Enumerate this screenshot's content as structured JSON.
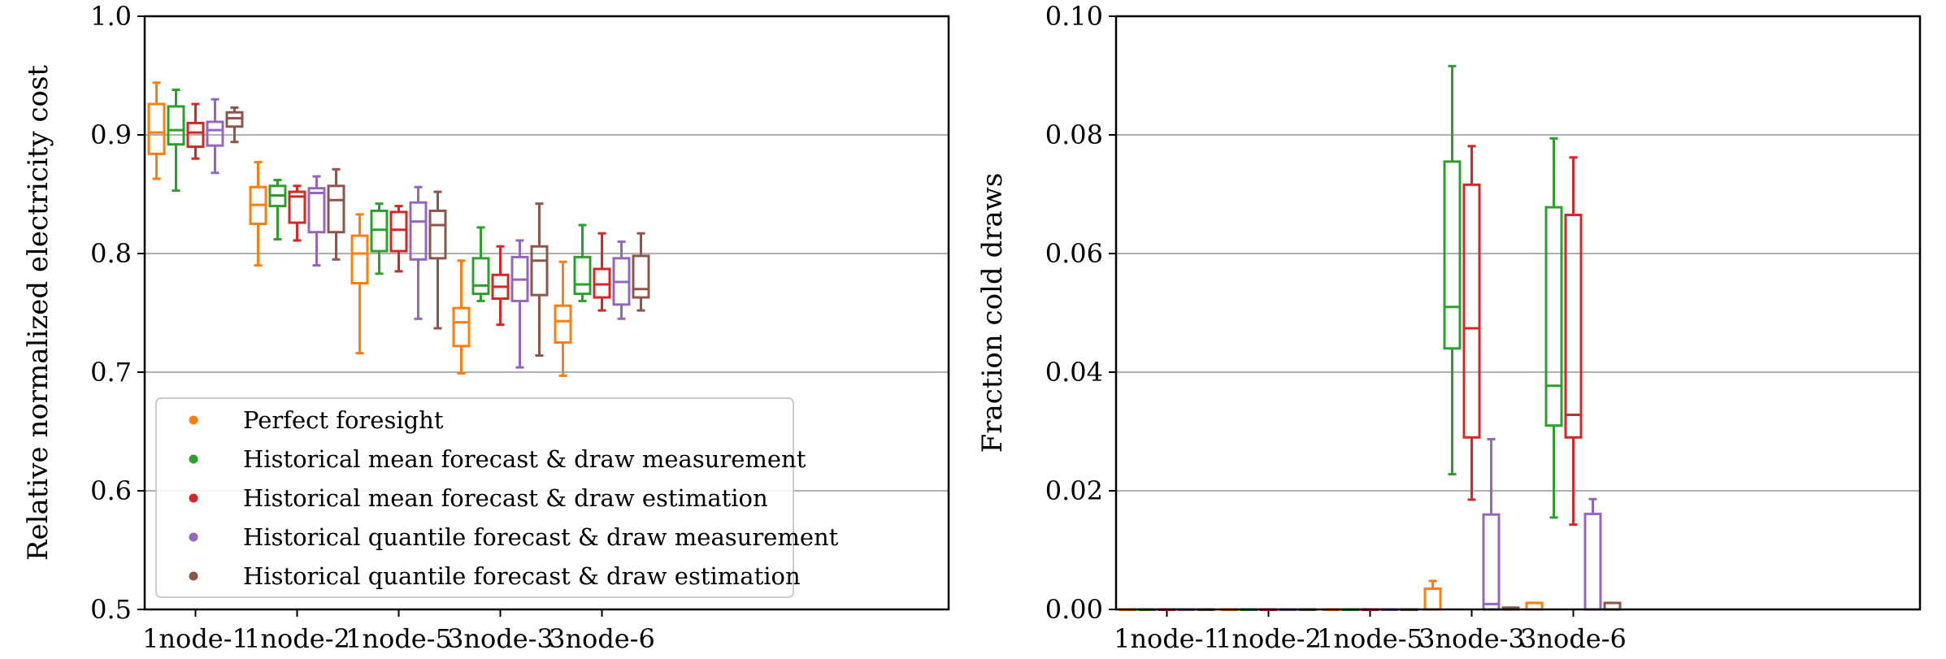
{
  "chart_data": [
    {
      "type": "box",
      "title": "",
      "xlabel": "",
      "ylabel": "Relative normalized electricity cost",
      "ylim": [
        0.5,
        1.0
      ],
      "yticks": [
        "0.5",
        "0.6",
        "0.7",
        "0.8",
        "0.9",
        "1.0"
      ],
      "ytick_values": [
        0.5,
        0.6,
        0.7,
        0.8,
        0.9,
        1.0
      ],
      "grid": "horizontal",
      "categories": [
        "1node-1",
        "1node-2",
        "1node-5",
        "3node-3",
        "3node-6"
      ],
      "legend": {
        "location": "lower-left",
        "entries": [
          "Perfect foresight",
          "Historical mean forecast & draw measurement",
          "Historical mean forecast & draw estimation",
          "Historical quantile forecast & draw measurement",
          "Historical quantile forecast & draw estimation"
        ]
      },
      "series": [
        {
          "name": "Perfect foresight",
          "color": "#ff7f0e",
          "boxes": [
            {
              "whislo": 0.863,
              "q1": 0.884,
              "med": 0.902,
              "q3": 0.926,
              "whishi": 0.944
            },
            {
              "whislo": 0.79,
              "q1": 0.825,
              "med": 0.841,
              "q3": 0.856,
              "whishi": 0.877
            },
            {
              "whislo": 0.716,
              "q1": 0.775,
              "med": 0.8,
              "q3": 0.815,
              "whishi": 0.833
            },
            {
              "whislo": 0.699,
              "q1": 0.722,
              "med": 0.742,
              "q3": 0.754,
              "whishi": 0.794
            },
            {
              "whislo": 0.697,
              "q1": 0.725,
              "med": 0.743,
              "q3": 0.756,
              "whishi": 0.793
            }
          ]
        },
        {
          "name": "Historical mean forecast & draw measurement",
          "color": "#2ca02c",
          "boxes": [
            {
              "whislo": 0.853,
              "q1": 0.892,
              "med": 0.904,
              "q3": 0.924,
              "whishi": 0.938
            },
            {
              "whislo": 0.812,
              "q1": 0.84,
              "med": 0.849,
              "q3": 0.857,
              "whishi": 0.862
            },
            {
              "whislo": 0.783,
              "q1": 0.802,
              "med": 0.82,
              "q3": 0.836,
              "whishi": 0.842
            },
            {
              "whislo": 0.76,
              "q1": 0.766,
              "med": 0.773,
              "q3": 0.796,
              "whishi": 0.822
            },
            {
              "whislo": 0.76,
              "q1": 0.766,
              "med": 0.774,
              "q3": 0.797,
              "whishi": 0.824
            }
          ]
        },
        {
          "name": "Historical mean forecast & draw estimation",
          "color": "#d62728",
          "boxes": [
            {
              "whislo": 0.88,
              "q1": 0.89,
              "med": 0.902,
              "q3": 0.91,
              "whishi": 0.926
            },
            {
              "whislo": 0.811,
              "q1": 0.826,
              "med": 0.848,
              "q3": 0.852,
              "whishi": 0.857
            },
            {
              "whislo": 0.785,
              "q1": 0.802,
              "med": 0.82,
              "q3": 0.835,
              "whishi": 0.84
            },
            {
              "whislo": 0.74,
              "q1": 0.762,
              "med": 0.772,
              "q3": 0.782,
              "whishi": 0.806
            },
            {
              "whislo": 0.752,
              "q1": 0.763,
              "med": 0.774,
              "q3": 0.787,
              "whishi": 0.817
            }
          ]
        },
        {
          "name": "Historical quantile forecast & draw measurement",
          "color": "#9467bd",
          "boxes": [
            {
              "whislo": 0.868,
              "q1": 0.891,
              "med": 0.904,
              "q3": 0.911,
              "whishi": 0.93
            },
            {
              "whislo": 0.79,
              "q1": 0.818,
              "med": 0.851,
              "q3": 0.855,
              "whishi": 0.865
            },
            {
              "whislo": 0.745,
              "q1": 0.795,
              "med": 0.827,
              "q3": 0.843,
              "whishi": 0.856
            },
            {
              "whislo": 0.704,
              "q1": 0.76,
              "med": 0.778,
              "q3": 0.797,
              "whishi": 0.811
            },
            {
              "whislo": 0.745,
              "q1": 0.757,
              "med": 0.776,
              "q3": 0.796,
              "whishi": 0.81
            }
          ]
        },
        {
          "name": "Historical quantile forecast & draw estimation",
          "color": "#8c564b",
          "boxes": [
            {
              "whislo": 0.894,
              "q1": 0.907,
              "med": 0.914,
              "q3": 0.919,
              "whishi": 0.923
            },
            {
              "whislo": 0.795,
              "q1": 0.818,
              "med": 0.845,
              "q3": 0.857,
              "whishi": 0.871
            },
            {
              "whislo": 0.737,
              "q1": 0.796,
              "med": 0.824,
              "q3": 0.836,
              "whishi": 0.852
            },
            {
              "whislo": 0.714,
              "q1": 0.765,
              "med": 0.794,
              "q3": 0.806,
              "whishi": 0.842
            },
            {
              "whislo": 0.752,
              "q1": 0.763,
              "med": 0.77,
              "q3": 0.798,
              "whishi": 0.817
            }
          ]
        }
      ]
    },
    {
      "type": "box",
      "title": "",
      "xlabel": "",
      "ylabel": "Fraction cold draws",
      "ylim": [
        0.0,
        0.1
      ],
      "yticks": [
        "0.00",
        "0.02",
        "0.04",
        "0.06",
        "0.08",
        "0.10"
      ],
      "ytick_values": [
        0.0,
        0.02,
        0.04,
        0.06,
        0.08,
        0.1
      ],
      "grid": "horizontal",
      "categories": [
        "1node-1",
        "1node-2",
        "1node-5",
        "3node-3",
        "3node-6"
      ],
      "series": [
        {
          "name": "Perfect foresight",
          "color": "#ff7f0e",
          "boxes": [
            {
              "whislo": 0,
              "q1": 0,
              "med": 0,
              "q3": 0,
              "whishi": 0
            },
            {
              "whislo": 0,
              "q1": 0,
              "med": 0,
              "q3": 0,
              "whishi": 0
            },
            {
              "whislo": 0,
              "q1": 0,
              "med": 0,
              "q3": 0,
              "whishi": 0
            },
            {
              "whislo": 0,
              "q1": 0,
              "med": 0,
              "q3": 0.0035,
              "whishi": 0.0048
            },
            {
              "whislo": 0,
              "q1": 0,
              "med": 0,
              "q3": 0.0011,
              "whishi": 0.0011
            }
          ]
        },
        {
          "name": "Historical mean forecast & draw measurement",
          "color": "#2ca02c",
          "boxes": [
            {
              "whislo": 0,
              "q1": 0,
              "med": 0,
              "q3": 0,
              "whishi": 0
            },
            {
              "whislo": 0,
              "q1": 0,
              "med": 0,
              "q3": 0,
              "whishi": 0
            },
            {
              "whislo": 0,
              "q1": 0,
              "med": 0,
              "q3": 0,
              "whishi": 0
            },
            {
              "whislo": 0.0228,
              "q1": 0.044,
              "med": 0.051,
              "q3": 0.0755,
              "whishi": 0.0916
            },
            {
              "whislo": 0.0155,
              "q1": 0.031,
              "med": 0.0377,
              "q3": 0.0678,
              "whishi": 0.0794
            }
          ]
        },
        {
          "name": "Historical mean forecast & draw estimation",
          "color": "#d62728",
          "boxes": [
            {
              "whislo": 0,
              "q1": 0,
              "med": 0,
              "q3": 0,
              "whishi": 0
            },
            {
              "whislo": 0,
              "q1": 0,
              "med": 0,
              "q3": 0,
              "whishi": 0
            },
            {
              "whislo": 0,
              "q1": 0,
              "med": 0,
              "q3": 0,
              "whishi": 0
            },
            {
              "whislo": 0.0185,
              "q1": 0.029,
              "med": 0.0474,
              "q3": 0.0716,
              "whishi": 0.0781
            },
            {
              "whislo": 0.0143,
              "q1": 0.029,
              "med": 0.0328,
              "q3": 0.0665,
              "whishi": 0.0762
            }
          ]
        },
        {
          "name": "Historical quantile forecast & draw measurement",
          "color": "#9467bd",
          "boxes": [
            {
              "whislo": 0,
              "q1": 0,
              "med": 0,
              "q3": 0,
              "whishi": 0
            },
            {
              "whislo": 0,
              "q1": 0,
              "med": 0,
              "q3": 0,
              "whishi": 0
            },
            {
              "whislo": 0,
              "q1": 0,
              "med": 0,
              "q3": 0,
              "whishi": 0
            },
            {
              "whislo": 0,
              "q1": 0,
              "med": 0.0009,
              "q3": 0.016,
              "whishi": 0.0287
            },
            {
              "whislo": 0,
              "q1": 0,
              "med": 0,
              "q3": 0.0161,
              "whishi": 0.0186
            }
          ]
        },
        {
          "name": "Historical quantile forecast & draw estimation",
          "color": "#8c564b",
          "boxes": [
            {
              "whislo": 0,
              "q1": 0,
              "med": 0,
              "q3": 0,
              "whishi": 0
            },
            {
              "whislo": 0,
              "q1": 0,
              "med": 0,
              "q3": 0,
              "whishi": 0
            },
            {
              "whislo": 0,
              "q1": 0,
              "med": 0,
              "q3": 0,
              "whishi": 0
            },
            {
              "whislo": 0,
              "q1": 0,
              "med": 0,
              "q3": 0.0003,
              "whishi": 0.0003
            },
            {
              "whislo": 0,
              "q1": 0,
              "med": 0,
              "q3": 0.0011,
              "whishi": 0.0011
            }
          ]
        }
      ]
    }
  ]
}
